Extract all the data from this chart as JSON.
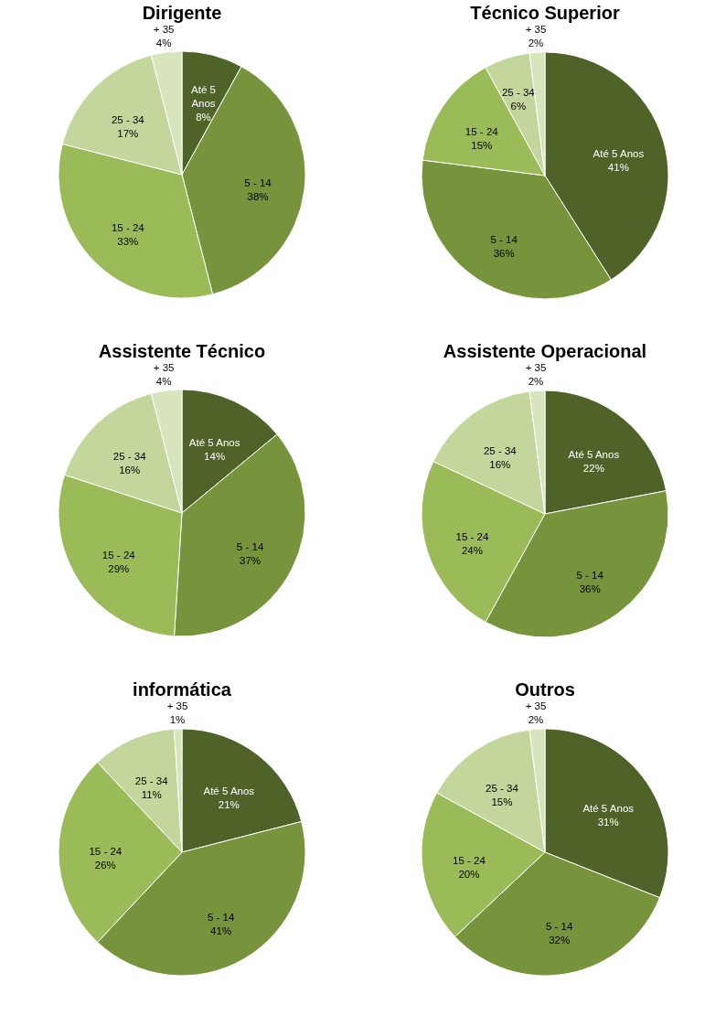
{
  "chart_data": [
    {
      "type": "pie",
      "title": "Dirigente",
      "categories": [
        "Até 5 Anos",
        "5 - 14",
        "15 - 24",
        "25 - 34",
        "+ 35"
      ],
      "values": [
        8,
        38,
        33,
        17,
        4
      ],
      "value_labels": [
        "8%",
        "38%",
        "33%",
        "17%",
        "4%"
      ],
      "colors": [
        "#4f6228",
        "#77933c",
        "#9bbb59",
        "#c3d69b",
        "#d7e4bc"
      ]
    },
    {
      "type": "pie",
      "title": "Técnico Superior",
      "categories": [
        "Até 5 Anos",
        "5 - 14",
        "15 - 24",
        "25 - 34",
        "+ 35"
      ],
      "values": [
        41,
        36,
        15,
        6,
        2
      ],
      "value_labels": [
        "41%",
        "36%",
        "15%",
        "6%",
        "2%"
      ],
      "colors": [
        "#4f6228",
        "#77933c",
        "#9bbb59",
        "#c3d69b",
        "#d7e4bc"
      ]
    },
    {
      "type": "pie",
      "title": "Assistente Técnico",
      "categories": [
        "Até 5 Anos",
        "5 - 14",
        "15 - 24",
        "25 - 34",
        "+ 35"
      ],
      "values": [
        14,
        37,
        29,
        16,
        4
      ],
      "value_labels": [
        "14%",
        "37%",
        "29%",
        "16%",
        "4%"
      ],
      "colors": [
        "#4f6228",
        "#77933c",
        "#9bbb59",
        "#c3d69b",
        "#d7e4bc"
      ]
    },
    {
      "type": "pie",
      "title": "Assistente Operacional",
      "categories": [
        "Até 5 Anos",
        "5 - 14",
        "15 - 24",
        "25 - 34",
        "+ 35"
      ],
      "values": [
        22,
        36,
        24,
        16,
        2
      ],
      "value_labels": [
        "22%",
        "36%",
        "24%",
        "16%",
        "2%"
      ],
      "colors": [
        "#4f6228",
        "#77933c",
        "#9bbb59",
        "#c3d69b",
        "#d7e4bc"
      ]
    },
    {
      "type": "pie",
      "title": "informática",
      "categories": [
        "Até 5 Anos",
        "5 - 14",
        "15 - 24",
        "25 - 34",
        "+ 35"
      ],
      "values": [
        21,
        41,
        26,
        11,
        1
      ],
      "value_labels": [
        "21%",
        "41%",
        "26%",
        "11%",
        "1%"
      ],
      "colors": [
        "#4f6228",
        "#77933c",
        "#9bbb59",
        "#c3d69b",
        "#d7e4bc"
      ]
    },
    {
      "type": "pie",
      "title": "Outros",
      "categories": [
        "Até 5 Anos",
        "5 - 14",
        "15 - 24",
        "25 - 34",
        "+ 35"
      ],
      "values": [
        31,
        32,
        20,
        15,
        2
      ],
      "value_labels": [
        "31%",
        "32%",
        "20%",
        "15%",
        "2%"
      ],
      "colors": [
        "#4f6228",
        "#77933c",
        "#9bbb59",
        "#c3d69b",
        "#d7e4bc"
      ]
    }
  ]
}
